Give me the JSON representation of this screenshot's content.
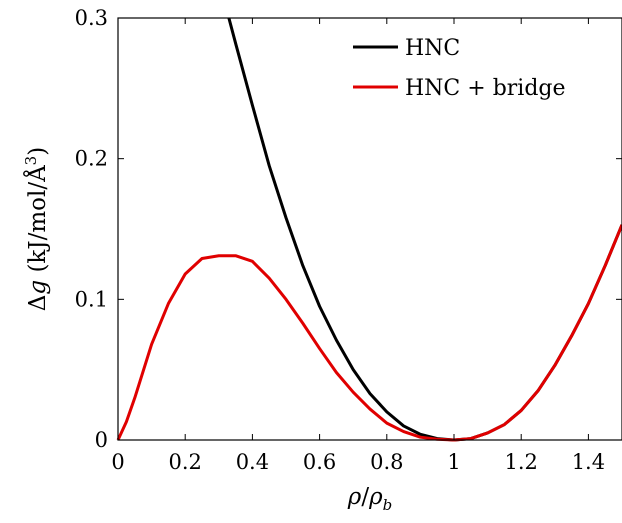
{
  "chart_data": {
    "type": "line",
    "xlabel": "ρ/ρ_b",
    "ylabel": "Δg (kJ/mol/Å³)",
    "xlim": [
      0,
      1.5
    ],
    "ylim": [
      0,
      0.3
    ],
    "xticks": [
      0,
      0.2,
      0.4,
      0.6,
      0.8,
      1,
      1.2,
      1.4
    ],
    "xtick_labels": [
      "0",
      "0.2",
      "0.4",
      "0.6",
      "0.8",
      "1",
      "1.2",
      "1.4"
    ],
    "yticks": [
      0,
      0.1,
      0.2,
      0.3
    ],
    "ytick_labels": [
      "0",
      "0.1",
      "0.2",
      "0.3"
    ],
    "grid": false,
    "legend_position": "top-right",
    "series": [
      {
        "name": "HNC",
        "color": "#000000",
        "x": [
          0.33,
          0.35,
          0.4,
          0.45,
          0.5,
          0.55,
          0.6,
          0.65,
          0.7,
          0.75,
          0.8,
          0.85,
          0.9,
          0.95,
          1.0,
          1.05,
          1.1,
          1.15,
          1.2,
          1.25,
          1.3,
          1.35,
          1.4,
          1.45,
          1.5
        ],
        "y": [
          0.3,
          0.282,
          0.238,
          0.195,
          0.158,
          0.124,
          0.095,
          0.071,
          0.05,
          0.033,
          0.02,
          0.01,
          0.004,
          0.001,
          0.0,
          0.001,
          0.005,
          0.011,
          0.021,
          0.035,
          0.053,
          0.074,
          0.097,
          0.124,
          0.153
        ]
      },
      {
        "name": "HNC + bridge",
        "color": "#e00000",
        "x": [
          0,
          0.025,
          0.05,
          0.1,
          0.15,
          0.2,
          0.25,
          0.3,
          0.35,
          0.4,
          0.45,
          0.5,
          0.55,
          0.6,
          0.65,
          0.7,
          0.75,
          0.8,
          0.85,
          0.9,
          0.95,
          1.0,
          1.05,
          1.1,
          1.15,
          1.2,
          1.25,
          1.3,
          1.35,
          1.4,
          1.45,
          1.5
        ],
        "y": [
          0.0,
          0.013,
          0.03,
          0.068,
          0.097,
          0.118,
          0.129,
          0.131,
          0.131,
          0.127,
          0.115,
          0.1,
          0.083,
          0.065,
          0.048,
          0.034,
          0.022,
          0.012,
          0.006,
          0.002,
          0.0005,
          0.0,
          0.001,
          0.005,
          0.011,
          0.021,
          0.035,
          0.053,
          0.074,
          0.097,
          0.124,
          0.153
        ]
      }
    ]
  }
}
